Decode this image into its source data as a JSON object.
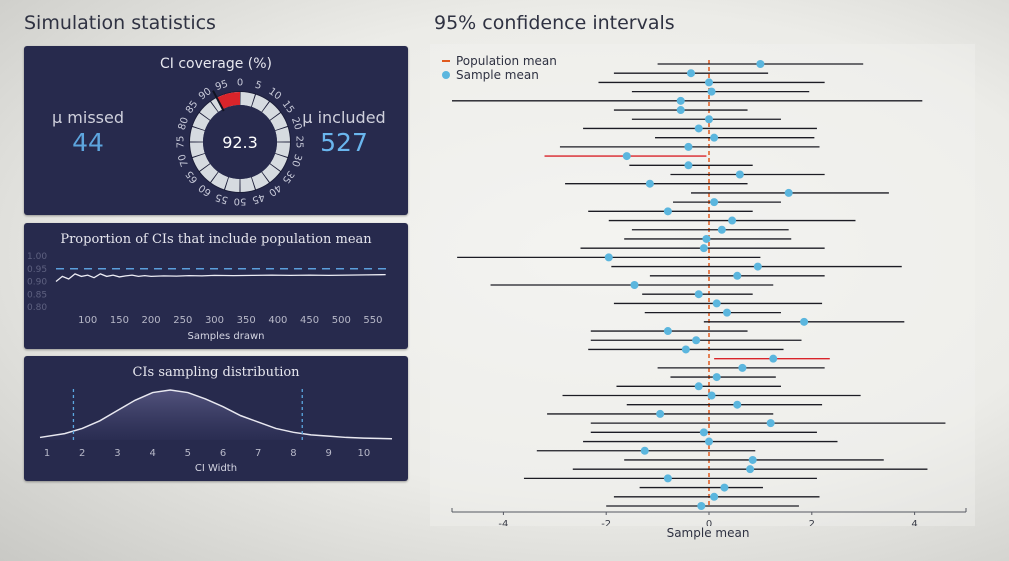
{
  "titles": {
    "left": "Simulation statistics",
    "right": "95% confidence intervals"
  },
  "coverage_panel": {
    "title": "CI coverage (%)",
    "missed_label": "μ missed",
    "missed_value": "44",
    "included_label": "μ included",
    "included_value": "527",
    "gauge_value": "92.3",
    "gauge_ticks": [
      "0",
      "5",
      "10",
      "15",
      "20",
      "25",
      "30",
      "35",
      "40",
      "45",
      "50",
      "55",
      "60",
      "65",
      "70",
      "75",
      "80",
      "85",
      "90",
      "95"
    ],
    "colors": {
      "missed": "#d9242a",
      "ring": "#d6dbe0"
    }
  },
  "proportion_panel": {
    "title": "Proportion of CIs that include population mean",
    "xlabel": "Samples drawn"
  },
  "width_panel": {
    "title": "CIs sampling distribution",
    "xlabel": "CI Width"
  },
  "ci_legend": {
    "population": "Population mean",
    "sample": "Sample mean"
  },
  "chart_data": [
    {
      "type": "line",
      "title": "Proportion of CIs that include population mean",
      "xlabel": "Samples drawn",
      "xlim": [
        50,
        580
      ],
      "ylim": [
        0.8,
        1.0
      ],
      "x_ticks": [
        100,
        150,
        200,
        250,
        300,
        350,
        400,
        450,
        500,
        550
      ],
      "y_ticks": [
        "1.00",
        "0.95",
        "0.90",
        "0.85",
        "0.80"
      ],
      "reference_line": 0.95,
      "series": [
        {
          "x": [
            50,
            60,
            70,
            80,
            90,
            100,
            110,
            120,
            130,
            140,
            150,
            160,
            170,
            180,
            190,
            200,
            220,
            240,
            260,
            280,
            300,
            330,
            360,
            390,
            420,
            450,
            480,
            510,
            540,
            570
          ],
          "values": [
            0.9,
            0.92,
            0.91,
            0.93,
            0.92,
            0.925,
            0.915,
            0.93,
            0.92,
            0.925,
            0.918,
            0.922,
            0.925,
            0.92,
            0.923,
            0.92,
            0.922,
            0.921,
            0.923,
            0.922,
            0.924,
            0.923,
            0.924,
            0.925,
            0.924,
            0.925,
            0.924,
            0.925,
            0.926,
            0.927
          ]
        }
      ]
    },
    {
      "type": "area",
      "title": "CIs sampling distribution",
      "xlabel": "CI Width",
      "xlim": [
        0.8,
        10.8
      ],
      "x_ticks": [
        1,
        2,
        3,
        4,
        5,
        6,
        7,
        8,
        9,
        10
      ],
      "markers": [
        1.75,
        8.25
      ],
      "series": [
        {
          "x": [
            0.8,
            1.5,
            2,
            2.5,
            3,
            3.5,
            4,
            4.5,
            5,
            5.5,
            6,
            6.5,
            7,
            7.5,
            8,
            8.5,
            9,
            9.5,
            10,
            10.8
          ],
          "values": [
            0.02,
            0.05,
            0.09,
            0.15,
            0.23,
            0.31,
            0.37,
            0.39,
            0.37,
            0.32,
            0.26,
            0.19,
            0.14,
            0.09,
            0.06,
            0.04,
            0.03,
            0.02,
            0.015,
            0.01
          ]
        }
      ]
    },
    {
      "type": "scatter",
      "title": "95% confidence intervals",
      "xlabel": "Sample mean",
      "xlim": [
        -5,
        5
      ],
      "x_ticks": [
        -4,
        -2,
        0,
        2,
        4
      ],
      "population_mean": 0,
      "series": [
        {
          "name": "Sample mean",
          "means": [
            1.0,
            -0.35,
            0.0,
            0.05,
            -0.55,
            -0.55,
            0.0,
            -0.2,
            0.1,
            -0.4,
            -1.6,
            -0.4,
            0.6,
            -1.15,
            1.55,
            0.1,
            -0.8,
            0.45,
            0.25,
            -0.05,
            -0.1,
            -1.95,
            0.95,
            0.55,
            -1.45,
            -0.2,
            0.15,
            0.35,
            1.85,
            -0.8,
            -0.25,
            -0.45,
            1.25,
            0.65,
            0.15,
            -0.2,
            0.05,
            0.55,
            -0.95,
            1.2,
            -0.1,
            0.0,
            -1.25,
            0.85,
            0.8,
            -0.8,
            0.3,
            0.1,
            -0.15
          ],
          "lower": [
            -1.0,
            -1.85,
            -2.15,
            -1.5,
            -5.0,
            -1.85,
            -1.5,
            -2.45,
            -1.05,
            -2.9,
            -3.2,
            -1.55,
            -0.75,
            -2.8,
            -0.35,
            -0.7,
            -2.35,
            -1.95,
            -1.5,
            -1.65,
            -2.5,
            -4.9,
            -1.9,
            -1.15,
            -4.25,
            -1.3,
            -1.85,
            -1.25,
            -0.1,
            -2.3,
            -2.3,
            -2.35,
            0.1,
            -1.0,
            -0.75,
            -1.8,
            -2.85,
            -1.6,
            -3.15,
            -2.3,
            -2.3,
            -2.45,
            -3.35,
            -1.65,
            -2.65,
            -3.6,
            -1.35,
            -1.85,
            -2.0
          ],
          "upper": [
            3.0,
            1.15,
            2.25,
            1.95,
            4.15,
            0.75,
            1.4,
            2.1,
            2.05,
            2.15,
            -0.05,
            0.85,
            2.25,
            0.75,
            3.5,
            1.4,
            0.85,
            2.85,
            1.55,
            1.6,
            2.25,
            1.0,
            3.75,
            2.25,
            1.25,
            0.85,
            2.2,
            1.4,
            3.8,
            0.75,
            1.8,
            1.45,
            2.35,
            2.25,
            1.3,
            1.4,
            2.95,
            2.2,
            1.25,
            4.6,
            2.1,
            2.5,
            0.9,
            3.4,
            4.25,
            2.1,
            1.05,
            2.15,
            1.75
          ],
          "missed": [
            false,
            false,
            false,
            false,
            false,
            false,
            false,
            false,
            false,
            false,
            true,
            false,
            false,
            false,
            false,
            false,
            false,
            false,
            false,
            false,
            false,
            false,
            false,
            false,
            false,
            false,
            false,
            false,
            false,
            false,
            false,
            false,
            true,
            false,
            false,
            false,
            false,
            false,
            false,
            false,
            false,
            false,
            false,
            false,
            false,
            false,
            false,
            false,
            false
          ]
        }
      ],
      "colors": {
        "population_line": "#e05a1e",
        "point": "#5bb6de",
        "interval": "#1c1c24",
        "missed_interval": "#d9242a"
      }
    }
  ]
}
